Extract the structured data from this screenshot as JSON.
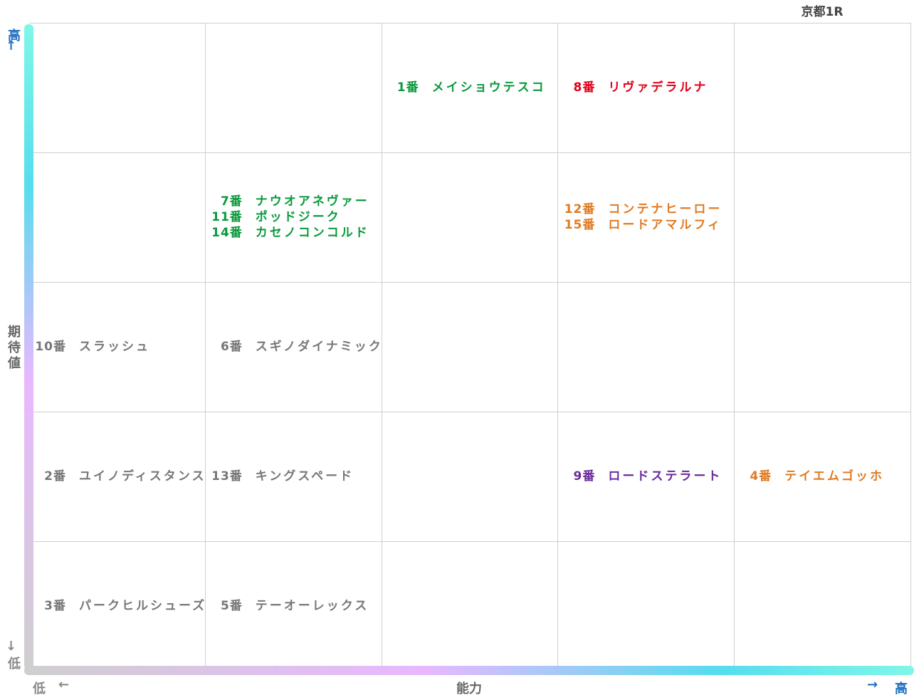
{
  "race_title": "京都1R",
  "axes": {
    "y_title": "期待値",
    "y_high": "高",
    "y_low": "低",
    "y_high_arrow": "↑",
    "y_low_arrow": "↓",
    "x_title": "能力",
    "x_low": "低",
    "x_high": "高",
    "x_low_arrow": "←",
    "x_high_arrow": "→"
  },
  "colors": {
    "green": "#0a9a3c",
    "red": "#e0001a",
    "orange": "#e07a22",
    "purple": "#6a2a9a",
    "gray": "#777777",
    "axis_blue": "#1f6fc0",
    "gradient_cyan": "#7ff7e8",
    "gradient_mid": "#55ddee",
    "gradient_pink": "#e8b8ff",
    "gradient_gray": "#cfcfcf"
  },
  "chart_data": {
    "type": "table",
    "xlabel": "能力",
    "ylabel": "期待値",
    "columns": 5,
    "rows": 5,
    "cells": [
      {
        "col": 2,
        "row": 0,
        "entries": [
          {
            "num": "1番",
            "name": "メイショウテスコ",
            "color": "#0a9a3c"
          }
        ]
      },
      {
        "col": 3,
        "row": 0,
        "entries": [
          {
            "num": "8番",
            "name": "リヴァデラルナ",
            "color": "#e0001a"
          }
        ]
      },
      {
        "col": 1,
        "row": 1,
        "entries": [
          {
            "num": "7番",
            "name": "ナウオアネヴァー",
            "color": "#0a9a3c"
          },
          {
            "num": "11番",
            "name": "ポッドジーク",
            "color": "#0a9a3c"
          },
          {
            "num": "14番",
            "name": "カセノコンコルド",
            "color": "#0a9a3c"
          }
        ]
      },
      {
        "col": 3,
        "row": 1,
        "entries": [
          {
            "num": "12番",
            "name": "コンテナヒーロー",
            "color": "#e07a22"
          },
          {
            "num": "15番",
            "name": "ロードアマルフィ",
            "color": "#e07a22"
          }
        ]
      },
      {
        "col": 0,
        "row": 2,
        "entries": [
          {
            "num": "10番",
            "name": "スラッシュ",
            "color": "#777777"
          }
        ]
      },
      {
        "col": 1,
        "row": 2,
        "entries": [
          {
            "num": "6番",
            "name": "スギノダイナミック",
            "color": "#777777"
          }
        ]
      },
      {
        "col": 0,
        "row": 3,
        "entries": [
          {
            "num": "2番",
            "name": "ユイノディスタンス",
            "color": "#777777"
          }
        ]
      },
      {
        "col": 1,
        "row": 3,
        "entries": [
          {
            "num": "13番",
            "name": "キングスペード",
            "color": "#777777"
          }
        ]
      },
      {
        "col": 3,
        "row": 3,
        "entries": [
          {
            "num": "9番",
            "name": "ロードステラート",
            "color": "#6a2a9a"
          }
        ]
      },
      {
        "col": 4,
        "row": 3,
        "entries": [
          {
            "num": "4番",
            "name": "テイエムゴッホ",
            "color": "#e07a22"
          }
        ]
      },
      {
        "col": 0,
        "row": 4,
        "entries": [
          {
            "num": "3番",
            "name": "パークヒルシューズ",
            "color": "#777777"
          }
        ]
      },
      {
        "col": 1,
        "row": 4,
        "entries": [
          {
            "num": "5番",
            "name": "テーオーレックス",
            "color": "#777777"
          }
        ]
      }
    ]
  }
}
